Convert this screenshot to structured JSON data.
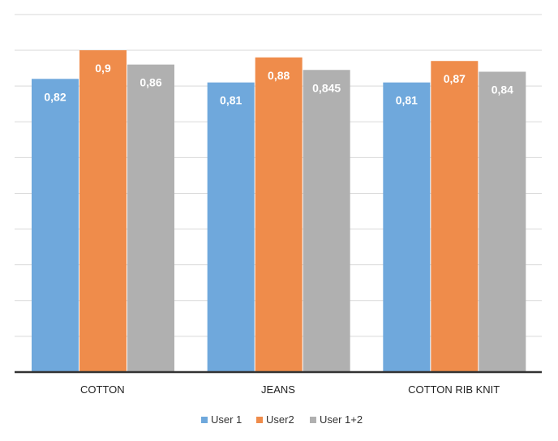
{
  "chart_data": {
    "type": "bar",
    "categories": [
      "COTTON",
      "JEANS",
      "COTTON RIB KNIT"
    ],
    "series": [
      {
        "name": "User 1",
        "color": "#6fa8dc",
        "values": [
          0.82,
          0.81,
          0.81
        ],
        "labels": [
          "0,82",
          "0,81",
          "0,81"
        ]
      },
      {
        "name": "User2",
        "color": "#ef8c4b",
        "values": [
          0.9,
          0.88,
          0.87
        ],
        "labels": [
          "0,9",
          "0,88",
          "0,87"
        ]
      },
      {
        "name": "User 1+2",
        "color": "#b0b0b0",
        "values": [
          0.86,
          0.845,
          0.84
        ],
        "labels": [
          "0,86",
          "0,845",
          "0,84"
        ]
      }
    ],
    "ylim": [
      0,
      0.9
    ],
    "grid": true,
    "legend_position": "bottom",
    "title": "",
    "xlabel": "",
    "ylabel": ""
  }
}
